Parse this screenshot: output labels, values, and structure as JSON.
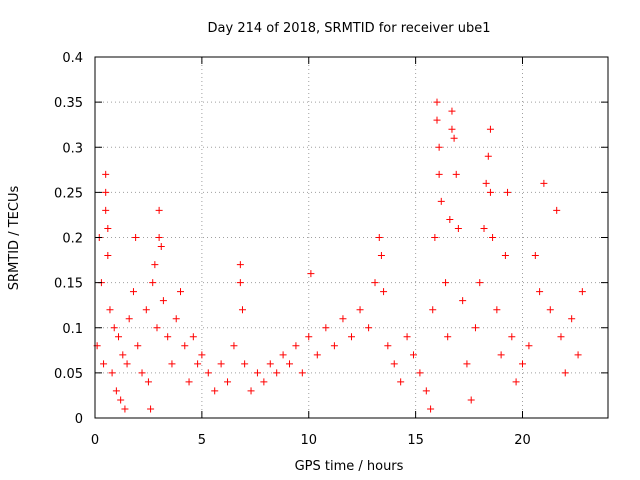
{
  "chart_data": {
    "type": "scatter",
    "title": "Day 214 of 2018, SRMTID for receiver ube1",
    "xlabel": "GPS time / hours",
    "ylabel": "SRMTID / TECUs",
    "xlim": [
      0,
      24
    ],
    "ylim": [
      0,
      0.4
    ],
    "x_ticks": [
      0,
      5,
      10,
      15,
      20
    ],
    "x_tick_labels": [
      "0",
      "5",
      "10",
      "15",
      "20"
    ],
    "y_ticks": [
      0,
      0.05,
      0.1,
      0.15,
      0.2,
      0.25,
      0.3,
      0.35,
      0.4
    ],
    "y_tick_labels": [
      "0",
      "0.05",
      "0.1",
      "0.15",
      "0.2",
      "0.25",
      "0.3",
      "0.35",
      "0.4"
    ],
    "grid": true,
    "marker": "+",
    "color": "#ff0000",
    "series": [
      {
        "name": "SRMTID",
        "points": [
          [
            0.1,
            0.08
          ],
          [
            0.2,
            0.2
          ],
          [
            0.3,
            0.15
          ],
          [
            0.4,
            0.06
          ],
          [
            0.5,
            0.27
          ],
          [
            0.5,
            0.25
          ],
          [
            0.5,
            0.23
          ],
          [
            0.6,
            0.21
          ],
          [
            0.6,
            0.18
          ],
          [
            0.7,
            0.12
          ],
          [
            0.8,
            0.05
          ],
          [
            0.9,
            0.1
          ],
          [
            1.0,
            0.03
          ],
          [
            1.1,
            0.09
          ],
          [
            1.2,
            0.02
          ],
          [
            1.3,
            0.07
          ],
          [
            1.4,
            0.01
          ],
          [
            1.5,
            0.06
          ],
          [
            1.6,
            0.11
          ],
          [
            1.8,
            0.14
          ],
          [
            1.9,
            0.2
          ],
          [
            2.0,
            0.08
          ],
          [
            2.2,
            0.05
          ],
          [
            2.4,
            0.12
          ],
          [
            2.5,
            0.04
          ],
          [
            2.6,
            0.01
          ],
          [
            2.7,
            0.15
          ],
          [
            2.8,
            0.17
          ],
          [
            2.9,
            0.1
          ],
          [
            3.0,
            0.23
          ],
          [
            3.0,
            0.2
          ],
          [
            3.1,
            0.19
          ],
          [
            3.2,
            0.13
          ],
          [
            3.4,
            0.09
          ],
          [
            3.6,
            0.06
          ],
          [
            3.8,
            0.11
          ],
          [
            4.0,
            0.14
          ],
          [
            4.2,
            0.08
          ],
          [
            4.4,
            0.04
          ],
          [
            4.6,
            0.09
          ],
          [
            4.8,
            0.06
          ],
          [
            5.0,
            0.07
          ],
          [
            5.3,
            0.05
          ],
          [
            5.6,
            0.03
          ],
          [
            5.9,
            0.06
          ],
          [
            6.2,
            0.04
          ],
          [
            6.5,
            0.08
          ],
          [
            6.8,
            0.17
          ],
          [
            6.8,
            0.15
          ],
          [
            6.9,
            0.12
          ],
          [
            7.0,
            0.06
          ],
          [
            7.3,
            0.03
          ],
          [
            7.6,
            0.05
          ],
          [
            7.9,
            0.04
          ],
          [
            8.2,
            0.06
          ],
          [
            8.5,
            0.05
          ],
          [
            8.8,
            0.07
          ],
          [
            9.1,
            0.06
          ],
          [
            9.4,
            0.08
          ],
          [
            9.7,
            0.05
          ],
          [
            10.0,
            0.09
          ],
          [
            10.1,
            0.16
          ],
          [
            10.4,
            0.07
          ],
          [
            10.8,
            0.1
          ],
          [
            11.2,
            0.08
          ],
          [
            11.6,
            0.11
          ],
          [
            12.0,
            0.09
          ],
          [
            12.4,
            0.12
          ],
          [
            12.8,
            0.1
          ],
          [
            13.1,
            0.15
          ],
          [
            13.3,
            0.2
          ],
          [
            13.4,
            0.18
          ],
          [
            13.5,
            0.14
          ],
          [
            13.7,
            0.08
          ],
          [
            14.0,
            0.06
          ],
          [
            14.3,
            0.04
          ],
          [
            14.6,
            0.09
          ],
          [
            14.9,
            0.07
          ],
          [
            15.2,
            0.05
          ],
          [
            15.5,
            0.03
          ],
          [
            15.7,
            0.01
          ],
          [
            15.8,
            0.12
          ],
          [
            15.9,
            0.2
          ],
          [
            16.0,
            0.35
          ],
          [
            16.0,
            0.33
          ],
          [
            16.1,
            0.3
          ],
          [
            16.1,
            0.27
          ],
          [
            16.2,
            0.24
          ],
          [
            16.4,
            0.15
          ],
          [
            16.5,
            0.09
          ],
          [
            16.6,
            0.22
          ],
          [
            16.7,
            0.34
          ],
          [
            16.7,
            0.32
          ],
          [
            16.8,
            0.31
          ],
          [
            16.9,
            0.27
          ],
          [
            17.0,
            0.21
          ],
          [
            17.2,
            0.13
          ],
          [
            17.4,
            0.06
          ],
          [
            17.6,
            0.02
          ],
          [
            17.8,
            0.1
          ],
          [
            18.0,
            0.15
          ],
          [
            18.2,
            0.21
          ],
          [
            18.3,
            0.26
          ],
          [
            18.4,
            0.29
          ],
          [
            18.5,
            0.32
          ],
          [
            18.5,
            0.25
          ],
          [
            18.6,
            0.2
          ],
          [
            18.8,
            0.12
          ],
          [
            19.0,
            0.07
          ],
          [
            19.2,
            0.18
          ],
          [
            19.3,
            0.25
          ],
          [
            19.5,
            0.09
          ],
          [
            19.7,
            0.04
          ],
          [
            20.0,
            0.06
          ],
          [
            20.3,
            0.08
          ],
          [
            20.6,
            0.18
          ],
          [
            20.8,
            0.14
          ],
          [
            21.0,
            0.26
          ],
          [
            21.3,
            0.12
          ],
          [
            21.6,
            0.23
          ],
          [
            21.8,
            0.09
          ],
          [
            22.0,
            0.05
          ],
          [
            22.3,
            0.11
          ],
          [
            22.6,
            0.07
          ],
          [
            22.8,
            0.14
          ]
        ]
      }
    ]
  }
}
